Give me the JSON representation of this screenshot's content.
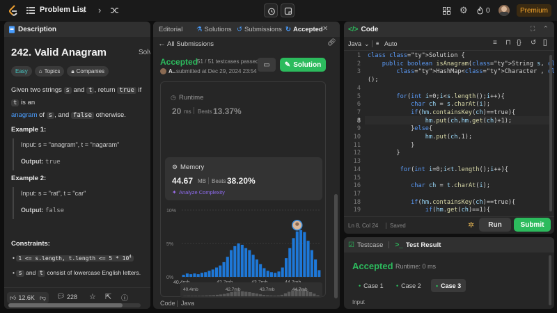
{
  "topbar": {
    "problem_list": "Problem List",
    "streak_count": "0",
    "premium": "Premium"
  },
  "description": {
    "tab": "Description",
    "peek_tab": "Solv",
    "title": "242. Valid Anagram",
    "tags": [
      "Easy",
      "Topics",
      "Companies"
    ],
    "statement": {
      "p1": "Given two strings ",
      "s": "s",
      "and": " and ",
      "t": "t",
      "p2": ", return ",
      "true_kw": "true",
      "if": " if ",
      "t2": "t",
      "p3": " is an",
      "anagram": "anagram",
      "of": " of ",
      "s2": "s",
      "and2": ", and ",
      "false_kw": "false",
      "p4": " otherwise."
    },
    "example1": {
      "title": "Example 1:",
      "input": "Input: s = \"anagram\", t = \"nagaram\"",
      "output_label": "Output: ",
      "output": "true"
    },
    "example2": {
      "title": "Example 2:",
      "input": "Input: s = \"rat\", t = \"car\"",
      "output_label": "Output: ",
      "output": "false"
    },
    "constraints_title": "Constraints:",
    "constraint1": "1 <= s.length, t.length <= 5 * 10",
    "constraint1_exp": "4",
    "constraint2_s": "s",
    "constraint2_mid": " and ",
    "constraint2_t": "t",
    "constraint2_rest": " consist of lowercase English letters.",
    "likes": "12.6K",
    "comments": "228"
  },
  "submission": {
    "tabs": [
      "Editorial",
      "Solutions",
      "Submissions",
      "Accepted"
    ],
    "back": "All Submissions",
    "status": "Accepted",
    "testcases": "51 / 51 testcases passed",
    "user": "A..",
    "submitted": "submitted at Dec 29, 2024 23:54",
    "solution_button": "Solution",
    "runtime_label": "Runtime",
    "runtime_value": "20",
    "runtime_unit": "ms",
    "runtime_beats_label": "Beats",
    "runtime_beats": "13.37%",
    "memory_label": "Memory",
    "memory_value": "44.67",
    "memory_unit": "MB",
    "memory_beats_label": "Beats",
    "memory_beats": "38.20%",
    "analyze": "Analyze Complexity",
    "footer_code": "Code",
    "footer_lang": "Java"
  },
  "chart_data": {
    "type": "bar",
    "y_ticks": [
      "10%",
      "5%",
      "0%"
    ],
    "ylim": [
      0,
      10
    ],
    "x_ticks": [
      "40.4mb",
      "42.7mb",
      "43.7mb",
      "44.7mb"
    ],
    "mini_x_ticks": [
      "40.4mb",
      "42.7mb",
      "43.7mb",
      "44.7mb"
    ],
    "values": [
      0.3,
      0.5,
      0.4,
      0.5,
      0.4,
      0.6,
      0.7,
      0.9,
      1.1,
      1.4,
      1.7,
      2.2,
      3.0,
      4.0,
      4.6,
      5.0,
      4.8,
      4.3,
      4.0,
      3.3,
      2.6,
      1.9,
      1.3,
      0.9,
      0.7,
      0.6,
      0.8,
      1.4,
      2.8,
      4.3,
      5.8,
      6.8,
      7.0,
      6.7,
      5.4,
      4.0,
      2.6,
      1.0
    ],
    "highlight_index": 31,
    "mini_values": [
      0.2,
      0.3,
      0.3,
      0.3,
      0.3,
      0.4,
      0.5,
      0.6,
      0.7,
      0.9,
      1.1,
      1.4,
      1.9,
      2.5,
      2.9,
      3.2,
      3.0,
      2.7,
      2.5,
      2.1,
      1.7,
      1.2,
      0.8,
      0.6,
      0.5,
      0.4,
      0.5,
      0.9,
      1.8,
      2.7,
      3.6,
      4.3,
      4.4,
      4.2,
      3.4,
      2.5,
      1.6,
      0.6
    ]
  },
  "code": {
    "tab": "Code",
    "lang": "Java",
    "mode": "Auto",
    "status_pos": "Ln 8, Col 24",
    "status_saved": "Saved",
    "run": "Run",
    "submit": "Submit",
    "lines": [
      {
        "n": "1",
        "t": "class Solution {"
      },
      {
        "n": "2",
        "t": "    public boolean isAnagram(String s, String t) {"
      },
      {
        "n": "3",
        "t": "        HashMap<Character , Integer> hm = new HashMap<>"
      },
      {
        "n": "",
        "t": "();"
      },
      {
        "n": "4",
        "t": ""
      },
      {
        "n": "5",
        "t": "        for(int i=0;i<s.length();i++){"
      },
      {
        "n": "6",
        "t": "            char ch = s.charAt(i);"
      },
      {
        "n": "7",
        "t": "            if(hm.containsKey(ch)==true){"
      },
      {
        "n": "8",
        "t": "                hm.put(ch,hm.get(ch)+1);"
      },
      {
        "n": "9",
        "t": "            }else{"
      },
      {
        "n": "10",
        "t": "                hm.put(ch,1);"
      },
      {
        "n": "11",
        "t": "            }"
      },
      {
        "n": "12",
        "t": "        }"
      },
      {
        "n": "13",
        "t": ""
      },
      {
        "n": "14",
        "t": "         for(int i=0;i<t.length();i++){"
      },
      {
        "n": "15",
        "t": ""
      },
      {
        "n": "16",
        "t": "            char ch = t.charAt(i);"
      },
      {
        "n": "17",
        "t": ""
      },
      {
        "n": "18",
        "t": "            if(hm.containsKey(ch)==true){"
      },
      {
        "n": "19",
        "t": "                if(hm.get(ch)==1){"
      }
    ]
  },
  "result": {
    "testcase_tab": "Testcase",
    "result_tab": "Test Result",
    "status": "Accepted",
    "runtime": "Runtime: 0 ms",
    "cases": [
      "Case 1",
      "Case 2",
      "Case 3"
    ],
    "input_label": "Input"
  },
  "colors": {
    "accent_green": "#2cbb5d",
    "easy": "#46c6c2",
    "link": "#4a9eff",
    "bar": "#1e78d8",
    "premium": "#f8a72c"
  }
}
